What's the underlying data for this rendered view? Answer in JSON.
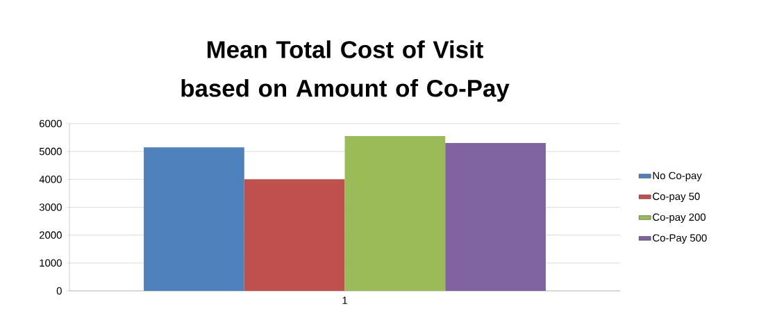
{
  "chart_data": {
    "type": "bar",
    "title": "Mean Total Cost of Visit based on Amount of Co-Pay",
    "categories": [
      "1"
    ],
    "series": [
      {
        "name": "No Co-pay",
        "color": "#4f81bd",
        "values": [
          5150
        ]
      },
      {
        "name": "Co-pay 50",
        "color": "#c0504d",
        "values": [
          4000
        ]
      },
      {
        "name": "Co-pay 200",
        "color": "#9bbb59",
        "values": [
          5550
        ]
      },
      {
        "name": "Co-Pay 500",
        "color": "#8064a2",
        "values": [
          5300
        ]
      }
    ],
    "ylim": [
      0,
      6000
    ],
    "yticks": [
      0,
      1000,
      2000,
      3000,
      4000,
      5000,
      6000
    ],
    "grid": "y",
    "legend": "right"
  }
}
